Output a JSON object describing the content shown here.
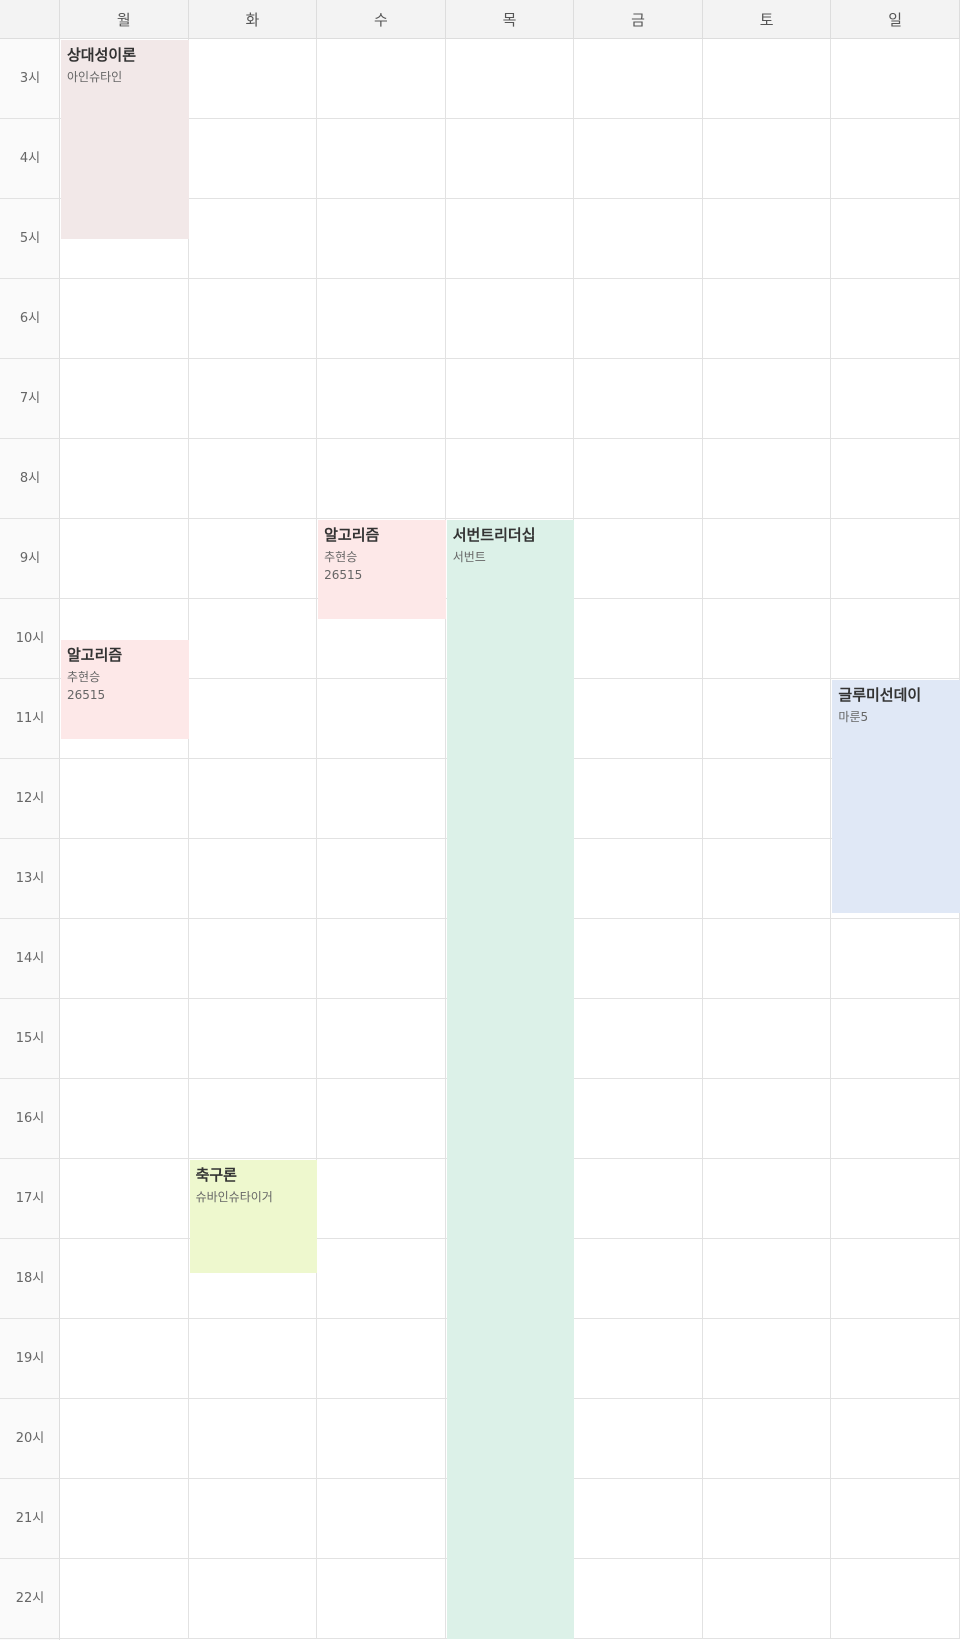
{
  "days": [
    "월",
    "화",
    "수",
    "목",
    "금",
    "토",
    "일"
  ],
  "hours": [
    "3시",
    "4시",
    "5시",
    "6시",
    "7시",
    "8시",
    "9시",
    "10시",
    "11시",
    "12시",
    "13시",
    "14시",
    "15시",
    "16시",
    "17시",
    "18시",
    "19시",
    "20시",
    "21시",
    "22시"
  ],
  "events": [
    {
      "day_index": 0,
      "start_hour": 3.0,
      "end_hour": 5.5,
      "title": "상대성이론",
      "professor": "아인슈타인",
      "room": "",
      "color": "#f2e8e8"
    },
    {
      "day_index": 2,
      "start_hour": 9.0,
      "end_hour": 10.25,
      "title": "알고리즘",
      "professor": "추현승",
      "room": "26515",
      "color": "#fde8e8"
    },
    {
      "day_index": 3,
      "start_hour": 9.0,
      "end_hour": 23.0,
      "title": "서번트리더십",
      "professor": "서번트",
      "room": "",
      "color": "#dcf1e8"
    },
    {
      "day_index": 0,
      "start_hour": 10.5,
      "end_hour": 11.75,
      "title": "알고리즘",
      "professor": "추현승",
      "room": "26515",
      "color": "#fde8e8"
    },
    {
      "day_index": 6,
      "start_hour": 11.0,
      "end_hour": 13.92,
      "title": "글루미선데이",
      "professor": "마룬5",
      "room": "",
      "color": "#e0e8f6"
    },
    {
      "day_index": 1,
      "start_hour": 17.0,
      "end_hour": 18.42,
      "title": "축구론",
      "professor": "슈바인슈타이거",
      "room": "",
      "color": "#eef8ce"
    }
  ]
}
